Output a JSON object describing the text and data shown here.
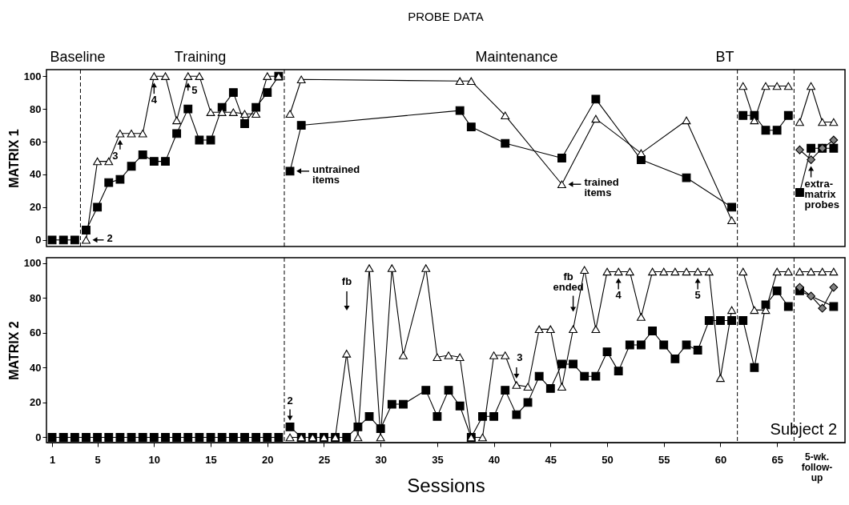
{
  "chart_data": [
    {
      "type": "line",
      "title": "PROBE DATA",
      "ylabel": "MATRIX 1",
      "xlim": [
        0.5,
        71
      ],
      "ylim": [
        -4,
        104
      ],
      "yticks": [
        0,
        20,
        40,
        60,
        80,
        100
      ],
      "tick_labels": "y",
      "series": [
        {
          "color": "#000000",
          "marker": "square",
          "x": [
            1,
            2,
            3,
            4,
            5,
            6,
            7,
            8,
            9,
            10,
            11,
            12,
            13,
            14,
            15,
            16,
            17,
            18,
            19,
            20,
            21,
            22,
            23,
            37,
            38,
            41,
            46,
            49,
            53,
            57,
            61,
            62,
            63,
            64,
            65,
            66,
            67,
            68,
            69,
            70
          ],
          "values": [
            0,
            0,
            0,
            6,
            20,
            35,
            37,
            45,
            52,
            48,
            48,
            65,
            80,
            61,
            61,
            81,
            90,
            71,
            81,
            90,
            100,
            42,
            70,
            79,
            69,
            59,
            50,
            86,
            49,
            38,
            20,
            76,
            76,
            67,
            67,
            76,
            29,
            56,
            56,
            56
          ]
        },
        {
          "color": "#000000",
          "marker": "triangle",
          "x": [
            4,
            5,
            6,
            7,
            8,
            9,
            10,
            11,
            12,
            13,
            14,
            15,
            16,
            17,
            18,
            19,
            20,
            21,
            22,
            23,
            37,
            38,
            41,
            46,
            49,
            53,
            57,
            61,
            62,
            63,
            64,
            65,
            66,
            67,
            68,
            69,
            70
          ],
          "values": [
            0,
            48,
            48,
            65,
            65,
            65,
            100,
            100,
            73,
            100,
            100,
            78,
            78,
            78,
            77,
            77,
            100,
            100,
            77,
            98,
            97,
            97,
            76,
            34,
            74,
            53,
            73,
            12,
            94,
            73,
            94,
            94,
            94,
            72,
            94,
            72,
            72
          ]
        },
        {
          "color": "#808080",
          "marker": "diamond",
          "x": [
            67,
            68,
            69,
            70
          ],
          "values": [
            55,
            49,
            56,
            61
          ]
        }
      ],
      "ref_lines": [
        {
          "axis": "x",
          "value": 3.5,
          "line_style": "dashed"
        },
        {
          "axis": "x",
          "value": 21.5,
          "line_style": "dashed"
        },
        {
          "axis": "x",
          "value": 61.5,
          "line_style": "dashed"
        },
        {
          "axis": "x",
          "value": 66.5,
          "line_style": "dashed"
        }
      ],
      "annotations": [
        {
          "text": "2",
          "x": 4,
          "y": 0
        },
        {
          "text": "3",
          "x": 7,
          "y": 65
        },
        {
          "text": "4",
          "x": 10,
          "y": 100
        },
        {
          "text": "5",
          "x": 13,
          "y": 100
        },
        {
          "text": "untrained items",
          "x": 22,
          "y": 42
        },
        {
          "text": "trained items",
          "x": 46,
          "y": 34
        },
        {
          "text": "extra-matrix probes",
          "x": 68,
          "y": 49
        },
        "Baseline",
        "Training",
        "Maintenance",
        "BT"
      ]
    },
    {
      "type": "line",
      "xlabel": "Sessions",
      "ylabel": "MATRIX 2",
      "xlim": [
        0.5,
        71
      ],
      "xticks": [
        1,
        5,
        10,
        15,
        20,
        25,
        30,
        35,
        40,
        45,
        50,
        55,
        60,
        65
      ],
      "ylim": [
        -3,
        103
      ],
      "yticks": [
        0,
        20,
        40,
        60,
        80,
        100
      ],
      "series": [
        {
          "color": "#000000",
          "marker": "square",
          "x": [
            1,
            2,
            3,
            4,
            5,
            6,
            7,
            8,
            9,
            10,
            11,
            12,
            13,
            14,
            15,
            16,
            17,
            18,
            19,
            20,
            21,
            22,
            23,
            24,
            25,
            26,
            27,
            28,
            29,
            30,
            31,
            32,
            34,
            35,
            36,
            37,
            38,
            39,
            40,
            41,
            42,
            43,
            44,
            45,
            46,
            47,
            48,
            49,
            50,
            51,
            52,
            53,
            54,
            55,
            56,
            57,
            58,
            59,
            60,
            61,
            62,
            63,
            64,
            65,
            66,
            67,
            70
          ],
          "values": [
            0,
            0,
            0,
            0,
            0,
            0,
            0,
            0,
            0,
            0,
            0,
            0,
            0,
            0,
            0,
            0,
            0,
            0,
            0,
            0,
            0,
            6,
            0,
            0,
            0,
            0,
            0,
            6,
            12,
            5,
            19,
            19,
            27,
            12,
            27,
            18,
            0,
            12,
            12,
            27,
            13,
            20,
            35,
            28,
            42,
            42,
            35,
            35,
            49,
            38,
            53,
            53,
            61,
            53,
            45,
            53,
            50,
            67,
            67,
            67,
            67,
            40,
            76,
            84,
            75,
            84,
            75
          ]
        },
        {
          "color": "#000000",
          "marker": "triangle",
          "x": [
            22,
            23,
            24,
            25,
            26,
            27,
            28,
            29,
            30,
            31,
            32,
            34,
            35,
            36,
            37,
            38,
            39,
            40,
            41,
            42,
            43,
            44,
            45,
            46,
            47,
            48,
            49,
            50,
            51,
            52,
            53,
            54,
            55,
            56,
            57,
            58,
            59,
            60,
            61,
            62,
            63,
            64,
            65,
            66,
            67,
            68,
            69,
            70
          ],
          "values": [
            0,
            0,
            0,
            0,
            0,
            48,
            0,
            97,
            0,
            97,
            47,
            97,
            46,
            47,
            46,
            0,
            0,
            47,
            47,
            30,
            29,
            62,
            62,
            29,
            62,
            96,
            62,
            95,
            95,
            95,
            69,
            95,
            95,
            95,
            95,
            95,
            95,
            34,
            73,
            95,
            73,
            73,
            95,
            95,
            95,
            95,
            95,
            95
          ]
        },
        {
          "color": "#808080",
          "marker": "diamond",
          "x": [
            67,
            68,
            69,
            70
          ],
          "values": [
            86,
            81,
            74,
            86
          ]
        }
      ],
      "ref_lines": [
        {
          "axis": "x",
          "value": 21.5,
          "line_style": "dashed"
        },
        {
          "axis": "x",
          "value": 61.5,
          "line_style": "dashed"
        },
        {
          "axis": "x",
          "value": 66.5,
          "line_style": "dashed"
        }
      ],
      "annotations": [
        {
          "text": "2",
          "x": 22,
          "y": 6
        },
        "fb",
        {
          "text": "3",
          "x": 42,
          "y": 30
        },
        {
          "text": "fb ended",
          "x": 47,
          "y": 72
        },
        {
          "text": "4",
          "x": 51,
          "y": 95
        },
        {
          "text": "5",
          "x": 58,
          "y": 95
        },
        "Subject 2",
        "5-wk. follow-up"
      ]
    }
  ]
}
